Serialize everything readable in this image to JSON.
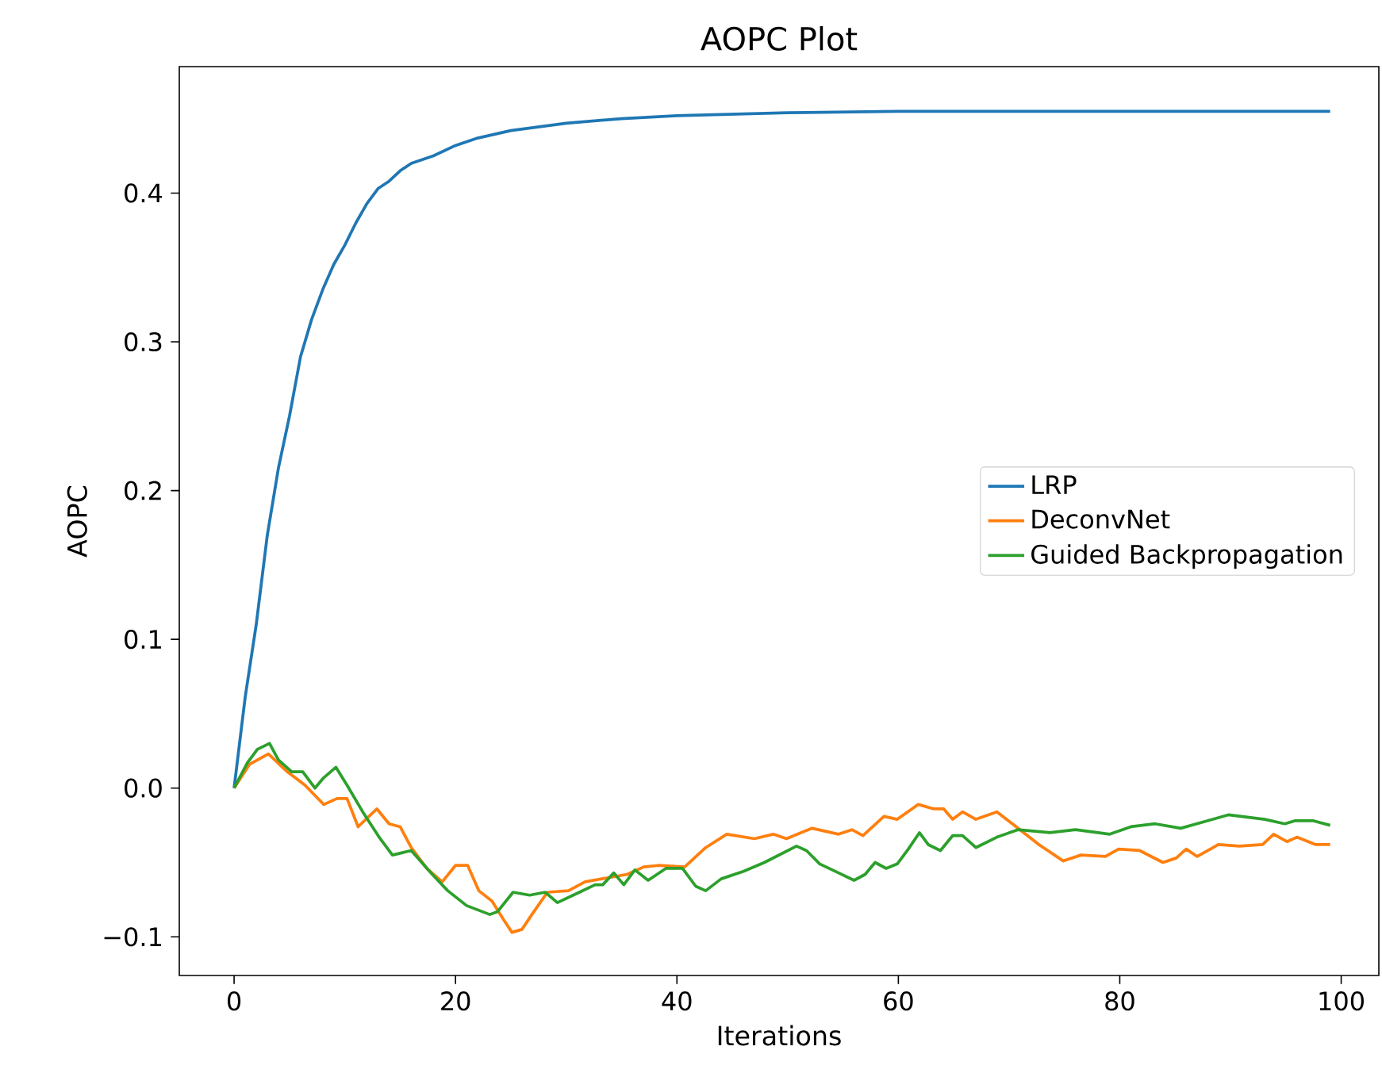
{
  "chart_data": {
    "type": "line",
    "title": "AOPC Plot",
    "xlabel": "Iterations",
    "ylabel": "AOPC",
    "xlim": [
      -4.95,
      103.4
    ],
    "ylim": [
      -0.126,
      0.485
    ],
    "xticks": [
      0,
      20,
      40,
      60,
      80,
      100
    ],
    "yticks": [
      {
        "value": -0.1,
        "label": "−0.1"
      },
      {
        "value": 0,
        "label": "0.0"
      },
      {
        "value": 0.1,
        "label": "0.1"
      },
      {
        "value": 0.2,
        "label": "0.2"
      },
      {
        "value": 0.3,
        "label": "0.3"
      },
      {
        "value": 0.4,
        "label": "0.4"
      }
    ],
    "legend": "right",
    "grid": false,
    "marker": "none",
    "line_style": "solid",
    "series": [
      {
        "name": "LRP",
        "color": "#1f77b4",
        "x": [
          0,
          1,
          2,
          3,
          4,
          5,
          6,
          7,
          8,
          9,
          10,
          11,
          12,
          13,
          14,
          15,
          16,
          18,
          20,
          22,
          25,
          30,
          35,
          40,
          50,
          60,
          70,
          80,
          99
        ],
        "values": [
          0,
          0.061,
          0.11,
          0.17,
          0.215,
          0.25,
          0.29,
          0.315,
          0.335,
          0.352,
          0.365,
          0.38,
          0.393,
          0.403,
          0.408,
          0.415,
          0.42,
          0.425,
          0.432,
          0.437,
          0.442,
          0.447,
          0.45,
          0.452,
          0.454,
          0.455,
          0.455,
          0.455,
          0.455
        ]
      },
      {
        "name": "DeconvNet",
        "color": "#ff7f0e",
        "x": [
          0,
          1.4,
          3.1,
          4.8,
          6.4,
          8.1,
          9.3,
          10.2,
          11.2,
          12.9,
          14,
          15,
          16,
          17.4,
          18.8,
          20,
          21.1,
          22.1,
          23.3,
          24.3,
          25.1,
          26,
          26.9,
          28.3,
          30.2,
          31.7,
          34,
          35.5,
          37,
          38.3,
          40.7,
          42.6,
          44.5,
          47,
          48.7,
          49.9,
          52.2,
          54.6,
          55.8,
          56.8,
          58.7,
          59.9,
          61.8,
          63.2,
          64.1,
          64.9,
          65.8,
          67,
          68.9,
          70.3,
          72.7,
          74.9,
          76.5,
          78.7,
          79.9,
          81.8,
          83.9,
          85.1,
          86,
          87,
          88.9,
          90.8,
          92.9,
          93.9,
          95.1,
          96,
          97.7,
          99
        ],
        "values": [
          0,
          0.016,
          0.023,
          0.011,
          0.002,
          -0.011,
          -0.007,
          -0.007,
          -0.026,
          -0.014,
          -0.024,
          -0.026,
          -0.04,
          -0.054,
          -0.063,
          -0.052,
          -0.052,
          -0.069,
          -0.076,
          -0.088,
          -0.097,
          -0.095,
          -0.085,
          -0.07,
          -0.069,
          -0.063,
          -0.06,
          -0.058,
          -0.053,
          -0.052,
          -0.053,
          -0.04,
          -0.031,
          -0.034,
          -0.031,
          -0.034,
          -0.027,
          -0.031,
          -0.028,
          -0.032,
          -0.019,
          -0.021,
          -0.011,
          -0.014,
          -0.014,
          -0.021,
          -0.016,
          -0.021,
          -0.016,
          -0.024,
          -0.038,
          -0.049,
          -0.045,
          -0.046,
          -0.041,
          -0.042,
          -0.05,
          -0.047,
          -0.041,
          -0.046,
          -0.038,
          -0.039,
          -0.038,
          -0.031,
          -0.036,
          -0.033,
          -0.038,
          -0.038
        ]
      },
      {
        "name": "Guided Backpropagation",
        "color": "#2ca02c",
        "x": [
          0,
          1.2,
          2.1,
          3.2,
          4,
          5.2,
          6.2,
          7.3,
          8.1,
          9.2,
          10.2,
          11.7,
          13.1,
          14.3,
          16,
          17.9,
          19.3,
          21,
          23.1,
          23.8,
          25.2,
          26.7,
          28.1,
          29.2,
          31.2,
          32.6,
          33.3,
          34.3,
          35.2,
          36.2,
          37.4,
          39,
          40.5,
          41.7,
          42.6,
          44,
          46,
          47.9,
          50.8,
          51.7,
          52.9,
          54.6,
          56,
          57,
          57.9,
          58.9,
          59.9,
          60.9,
          61.9,
          62.7,
          63.8,
          64.9,
          65.8,
          67,
          68.9,
          70.8,
          73.7,
          76,
          79.1,
          81,
          83.2,
          85.5,
          87.9,
          89.8,
          93.1,
          94.9,
          95.8,
          97.5,
          99
        ],
        "values": [
          0,
          0.017,
          0.026,
          0.03,
          0.019,
          0.011,
          0.011,
          0,
          0.007,
          0.014,
          0.002,
          -0.017,
          -0.033,
          -0.045,
          -0.042,
          -0.058,
          -0.069,
          -0.079,
          -0.085,
          -0.083,
          -0.07,
          -0.072,
          -0.07,
          -0.077,
          -0.07,
          -0.065,
          -0.065,
          -0.057,
          -0.065,
          -0.055,
          -0.062,
          -0.054,
          -0.054,
          -0.066,
          -0.069,
          -0.061,
          -0.056,
          -0.05,
          -0.039,
          -0.042,
          -0.051,
          -0.057,
          -0.062,
          -0.058,
          -0.05,
          -0.054,
          -0.051,
          -0.041,
          -0.03,
          -0.038,
          -0.042,
          -0.032,
          -0.032,
          -0.04,
          -0.033,
          -0.028,
          -0.03,
          -0.028,
          -0.031,
          -0.026,
          -0.024,
          -0.027,
          -0.022,
          -0.018,
          -0.021,
          -0.024,
          -0.022,
          -0.022,
          -0.025
        ]
      }
    ]
  }
}
